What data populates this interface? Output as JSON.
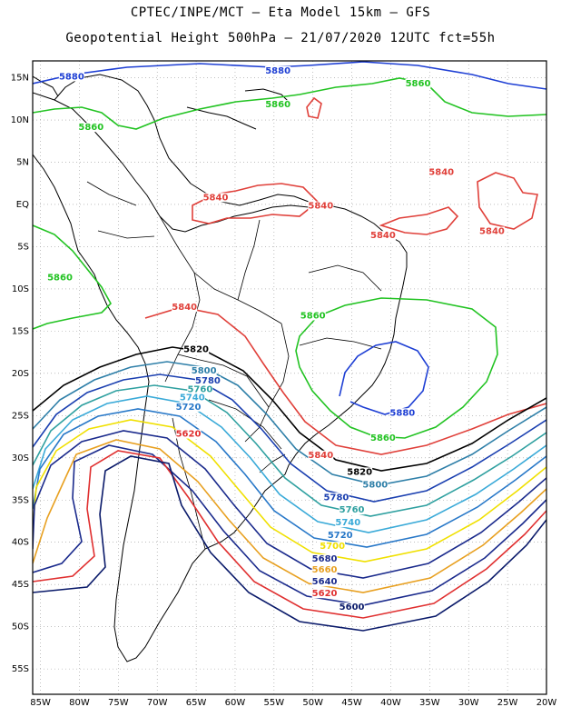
{
  "title": {
    "line1": "CPTEC/INPE/MCT –  Eta Model 15km – GFS",
    "line2": "Geopotential Height 500hPa – 21/07/2020 12UTC fct=55h"
  },
  "map": {
    "lon_labels": [
      "85W",
      "80W",
      "75W",
      "70W",
      "65W",
      "60W",
      "55W",
      "50W",
      "45W",
      "40W",
      "35W",
      "30W",
      "25W",
      "20W"
    ],
    "lat_labels": [
      "15N",
      "10N",
      "5N",
      "EQ",
      "5S",
      "10S",
      "15S",
      "20S",
      "25S",
      "30S",
      "35S",
      "40S",
      "45S",
      "50S",
      "55S"
    ],
    "lon_range": [
      -86,
      -20
    ],
    "lat_range": [
      17,
      -58
    ],
    "grid": "dotted"
  },
  "contours": [
    {
      "value": "5880",
      "color": "#1e3fd4"
    },
    {
      "value": "5860",
      "color": "#22c322"
    },
    {
      "value": "5840",
      "color": "#e0403a"
    },
    {
      "value": "5820",
      "color": "#000000"
    },
    {
      "value": "5800",
      "color": "#2e7fa8"
    },
    {
      "value": "5780",
      "color": "#1a3fb0"
    },
    {
      "value": "5760",
      "color": "#2fa0a0"
    },
    {
      "value": "5740",
      "color": "#3aaad8"
    },
    {
      "value": "5720",
      "color": "#2878c8"
    },
    {
      "value": "5700",
      "color": "#f0e000"
    },
    {
      "value": "5680",
      "color": "#1a2a8c"
    },
    {
      "value": "5660",
      "color": "#e8a020"
    },
    {
      "value": "5640",
      "color": "#1a2a8c"
    },
    {
      "value": "5620",
      "color": "#e03030"
    },
    {
      "value": "5600",
      "color": "#0a1a6a"
    }
  ],
  "labels": [
    {
      "text": "5880",
      "color": "#1e3fd4",
      "lon": -81,
      "lat": 14.8
    },
    {
      "text": "5880",
      "color": "#1e3fd4",
      "lon": -54.5,
      "lat": 15.5
    },
    {
      "text": "5860",
      "color": "#22c322",
      "lon": -36.5,
      "lat": 14.0
    },
    {
      "text": "5860",
      "color": "#22c322",
      "lon": -54.5,
      "lat": 11.5
    },
    {
      "text": "5860",
      "color": "#22c322",
      "lon": -78.5,
      "lat": 8.8
    },
    {
      "text": "5840",
      "color": "#e0403a",
      "lon": -33.5,
      "lat": 3.5
    },
    {
      "text": "5840",
      "color": "#e0403a",
      "lon": -62.5,
      "lat": 0.5
    },
    {
      "text": "5840",
      "color": "#e0403a",
      "lon": -49,
      "lat": -0.5
    },
    {
      "text": "5840",
      "color": "#e0403a",
      "lon": -41,
      "lat": -4.0
    },
    {
      "text": "5840",
      "color": "#e0403a",
      "lon": -27,
      "lat": -3.5
    },
    {
      "text": "5860",
      "color": "#22c322",
      "lon": -82.5,
      "lat": -9.0
    },
    {
      "text": "5840",
      "color": "#e0403a",
      "lon": -66.5,
      "lat": -12.5
    },
    {
      "text": "5860",
      "color": "#22c322",
      "lon": -50,
      "lat": -13.5
    },
    {
      "text": "5820",
      "color": "#000000",
      "lon": -65,
      "lat": -17.5
    },
    {
      "text": "5800",
      "color": "#2e7fa8",
      "lon": -64,
      "lat": -20.0
    },
    {
      "text": "5780",
      "color": "#1a3fb0",
      "lon": -63.5,
      "lat": -21.2
    },
    {
      "text": "5760",
      "color": "#2fa0a0",
      "lon": -64.5,
      "lat": -22.2
    },
    {
      "text": "5740",
      "color": "#3aaad8",
      "lon": -65.5,
      "lat": -23.2
    },
    {
      "text": "5720",
      "color": "#2878c8",
      "lon": -66,
      "lat": -24.3
    },
    {
      "text": "5880",
      "color": "#1e3fd4",
      "lon": -38.5,
      "lat": -25.0
    },
    {
      "text": "5860",
      "color": "#22c322",
      "lon": -41,
      "lat": -28.0
    },
    {
      "text": "5620",
      "color": "#e03030",
      "lon": -66,
      "lat": -27.5
    },
    {
      "text": "5840",
      "color": "#e0403a",
      "lon": -49,
      "lat": -30.0
    },
    {
      "text": "5820",
      "color": "#000000",
      "lon": -44,
      "lat": -32.0
    },
    {
      "text": "5800",
      "color": "#2e7fa8",
      "lon": -42,
      "lat": -33.5
    },
    {
      "text": "5780",
      "color": "#1a3fb0",
      "lon": -47,
      "lat": -35.0
    },
    {
      "text": "5760",
      "color": "#2fa0a0",
      "lon": -45,
      "lat": -36.5
    },
    {
      "text": "5740",
      "color": "#3aaad8",
      "lon": -45.5,
      "lat": -38.0
    },
    {
      "text": "5720",
      "color": "#2878c8",
      "lon": -46.5,
      "lat": -39.5
    },
    {
      "text": "5700",
      "color": "#f0e000",
      "lon": -47.5,
      "lat": -40.8
    },
    {
      "text": "5680",
      "color": "#1a2a8c",
      "lon": -48.5,
      "lat": -42.3
    },
    {
      "text": "5660",
      "color": "#e8a020",
      "lon": -48.5,
      "lat": -43.6
    },
    {
      "text": "5640",
      "color": "#1a2a8c",
      "lon": -48.5,
      "lat": -45.0
    },
    {
      "text": "5620",
      "color": "#e03030",
      "lon": -48.5,
      "lat": -46.4
    },
    {
      "text": "5600",
      "color": "#0a1a6a",
      "lon": -45,
      "lat": -48.0
    }
  ]
}
